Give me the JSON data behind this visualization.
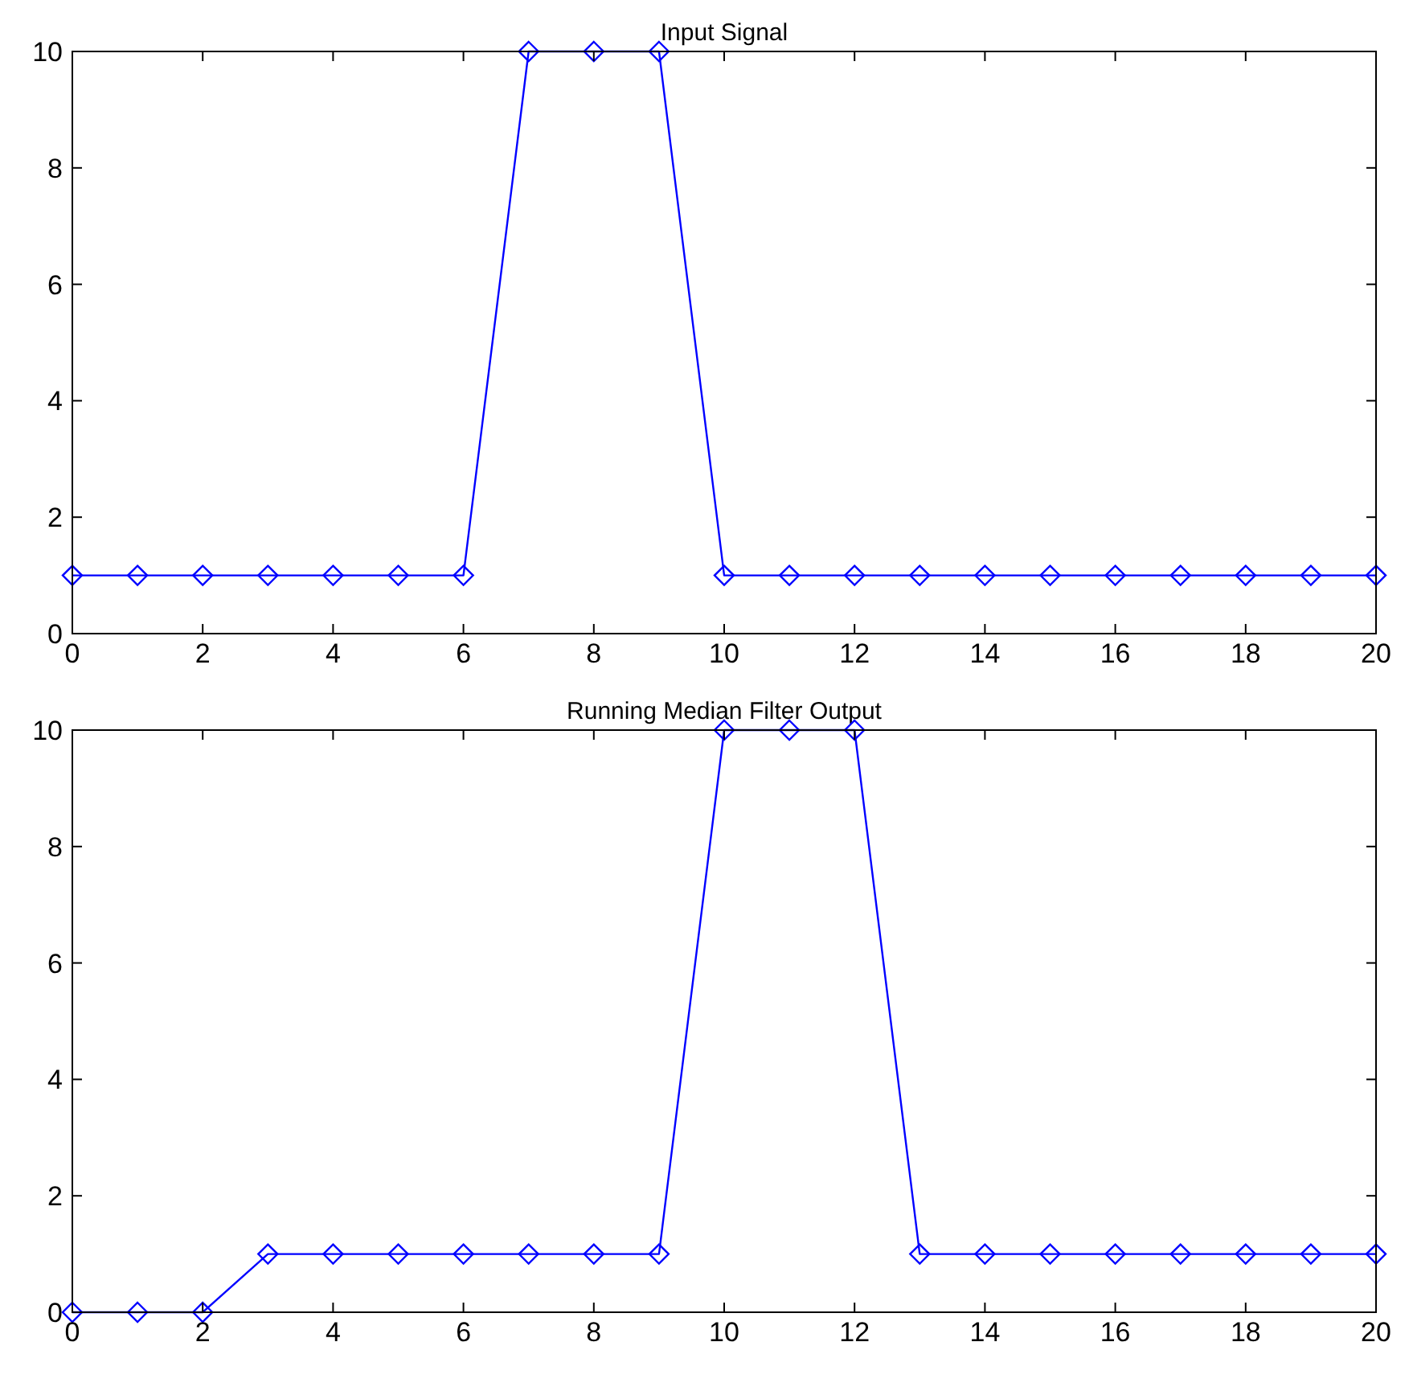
{
  "chart_data": [
    {
      "type": "line",
      "title": "Input Signal",
      "x": [
        0,
        1,
        2,
        3,
        4,
        5,
        6,
        7,
        8,
        9,
        10,
        11,
        12,
        13,
        14,
        15,
        16,
        17,
        18,
        19,
        20
      ],
      "values": [
        1,
        1,
        1,
        1,
        1,
        1,
        1,
        10,
        10,
        10,
        1,
        1,
        1,
        1,
        1,
        1,
        1,
        1,
        1,
        1,
        1
      ],
      "color": "#0000ff",
      "marker": "diamond",
      "xlim": [
        0,
        20
      ],
      "xticks": [
        0,
        2,
        4,
        6,
        8,
        10,
        12,
        14,
        16,
        18,
        20
      ],
      "ylim": [
        0,
        10
      ],
      "yticks": [
        0,
        2,
        4,
        6,
        8,
        10
      ]
    },
    {
      "type": "line",
      "title": "Running Median Filter Output",
      "x": [
        0,
        1,
        2,
        3,
        4,
        5,
        6,
        7,
        8,
        9,
        10,
        11,
        12,
        13,
        14,
        15,
        16,
        17,
        18,
        19,
        20
      ],
      "values": [
        0,
        0,
        0,
        1,
        1,
        1,
        1,
        1,
        1,
        1,
        10,
        10,
        10,
        1,
        1,
        1,
        1,
        1,
        1,
        1,
        1
      ],
      "color": "#0000ff",
      "marker": "diamond",
      "xlim": [
        0,
        20
      ],
      "xticks": [
        0,
        2,
        4,
        6,
        8,
        10,
        12,
        14,
        16,
        18,
        20
      ],
      "ylim": [
        0,
        10
      ],
      "yticks": [
        0,
        2,
        4,
        6,
        8,
        10
      ]
    }
  ]
}
